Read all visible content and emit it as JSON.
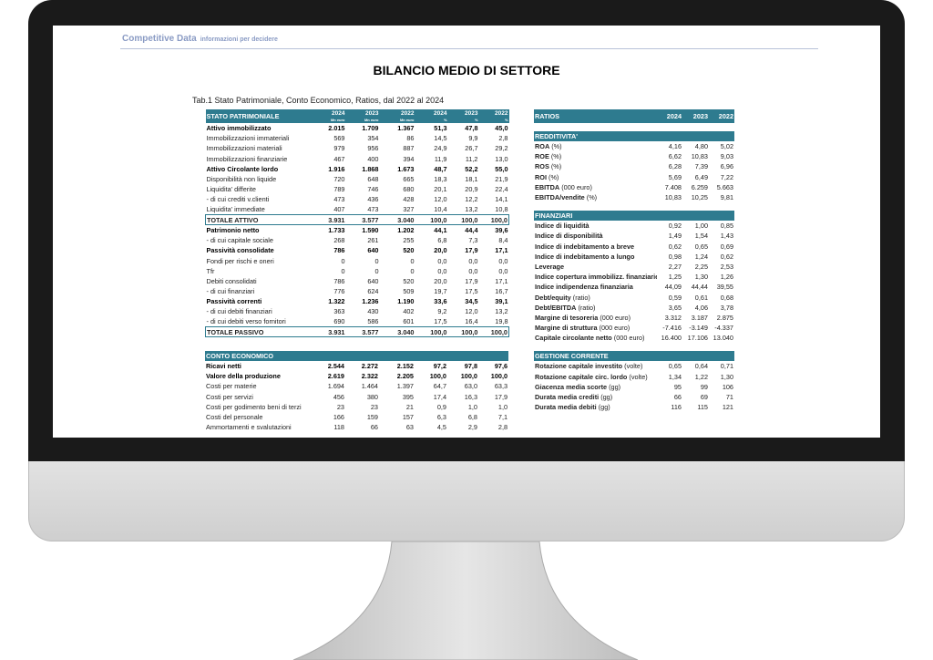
{
  "header": {
    "brand": "Competitive Data",
    "tagline": "informazioni per decidere"
  },
  "title": "BILANCIO MEDIO DI SETTORE",
  "subtitle": "Tab.1 Stato Patrimoniale, Conto Economico, Ratios, dal 2022 al 2024",
  "colors": {
    "header_teal": "#2e7b8f"
  },
  "stato_patrimoniale": {
    "title": "STATO PATRIMONIALE",
    "columns": [
      {
        "year": "2024",
        "unit": "Mn euro"
      },
      {
        "year": "2023",
        "unit": "Mn euro"
      },
      {
        "year": "2022",
        "unit": "Mn euro"
      },
      {
        "year": "2024",
        "unit": "%"
      },
      {
        "year": "2023",
        "unit": "%"
      },
      {
        "year": "2022",
        "unit": "%"
      }
    ],
    "rows": [
      {
        "label": "Attivo immobilizzato",
        "style": "b",
        "values": [
          "2.015",
          "1.709",
          "1.367",
          "51,3",
          "47,8",
          "45,0"
        ]
      },
      {
        "label": "Immobilizzazioni immateriali",
        "values": [
          "569",
          "354",
          "86",
          "14,5",
          "9,9",
          "2,8"
        ]
      },
      {
        "label": "Immobilizzazioni materiali",
        "values": [
          "979",
          "956",
          "887",
          "24,9",
          "26,7",
          "29,2"
        ]
      },
      {
        "label": "Immobilizzazioni finanziarie",
        "values": [
          "467",
          "400",
          "394",
          "11,9",
          "11,2",
          "13,0"
        ]
      },
      {
        "label": "Attivo Circolante  lordo",
        "style": "b",
        "values": [
          "1.916",
          "1.868",
          "1.673",
          "48,7",
          "52,2",
          "55,0"
        ]
      },
      {
        "label": "Disponibilità non liquide",
        "values": [
          "720",
          "648",
          "665",
          "18,3",
          "18,1",
          "21,9"
        ]
      },
      {
        "label": "Liquidita'  differite",
        "values": [
          "789",
          "746",
          "680",
          "20,1",
          "20,9",
          "22,4"
        ]
      },
      {
        "label": " - di cui crediti v.clienti",
        "values": [
          "473",
          "436",
          "428",
          "12,0",
          "12,2",
          "14,1"
        ]
      },
      {
        "label": "Liquidita'  immediate",
        "values": [
          "407",
          "473",
          "327",
          "10,4",
          "13,2",
          "10,8"
        ]
      },
      {
        "label": "TOTALE ATTIVO",
        "style": "tot",
        "values": [
          "3.931",
          "3.577",
          "3.040",
          "100,0",
          "100,0",
          "100,0"
        ]
      },
      {
        "label": "Patrimonio netto",
        "style": "b",
        "values": [
          "1.733",
          "1.590",
          "1.202",
          "44,1",
          "44,4",
          "39,6"
        ]
      },
      {
        "label": " - di cui capitale sociale",
        "values": [
          "268",
          "261",
          "255",
          "6,8",
          "7,3",
          "8,4"
        ]
      },
      {
        "label": "Passività consolidate",
        "style": "b",
        "values": [
          "786",
          "640",
          "520",
          "20,0",
          "17,9",
          "17,1"
        ]
      },
      {
        "label": "Fondi per rischi e oneri",
        "values": [
          "0",
          "0",
          "0",
          "0,0",
          "0,0",
          "0,0"
        ]
      },
      {
        "label": "Tfr",
        "values": [
          "0",
          "0",
          "0",
          "0,0",
          "0,0",
          "0,0"
        ]
      },
      {
        "label": "Debiti consolidati",
        "values": [
          "786",
          "640",
          "520",
          "20,0",
          "17,9",
          "17,1"
        ]
      },
      {
        "label": "- di cui finanziari",
        "values": [
          "776",
          "624",
          "509",
          "19,7",
          "17,5",
          "16,7"
        ]
      },
      {
        "label": "Passività correnti",
        "style": "b",
        "values": [
          "1.322",
          "1.236",
          "1.190",
          "33,6",
          "34,5",
          "39,1"
        ]
      },
      {
        "label": "- di cui debiti finanziari",
        "values": [
          "363",
          "430",
          "402",
          "9,2",
          "12,0",
          "13,2"
        ]
      },
      {
        "label": "- di cui debiti verso fornitori",
        "values": [
          "690",
          "586",
          "601",
          "17,5",
          "16,4",
          "19,8"
        ]
      },
      {
        "label": "TOTALE PASSIVO",
        "style": "tot",
        "values": [
          "3.931",
          "3.577",
          "3.040",
          "100,0",
          "100,0",
          "100,0"
        ]
      }
    ]
  },
  "conto_economico": {
    "title": "CONTO ECONOMICO",
    "rows": [
      {
        "label": "Ricavi netti",
        "style": "b",
        "values": [
          "2.544",
          "2.272",
          "2.152",
          "97,2",
          "97,8",
          "97,6"
        ]
      },
      {
        "label": "Valore della produzione",
        "style": "b",
        "values": [
          "2.619",
          "2.322",
          "2.205",
          "100,0",
          "100,0",
          "100,0"
        ]
      },
      {
        "label": "Costi per materie",
        "values": [
          "1.694",
          "1.464",
          "1.397",
          "64,7",
          "63,0",
          "63,3"
        ]
      },
      {
        "label": "Costi per servizi",
        "values": [
          "456",
          "380",
          "395",
          "17,4",
          "16,3",
          "17,9"
        ]
      },
      {
        "label": "Costi per godimento beni di terzi",
        "values": [
          "23",
          "23",
          "21",
          "0,9",
          "1,0",
          "1,0"
        ]
      },
      {
        "label": "Costi del personale",
        "values": [
          "166",
          "159",
          "157",
          "6,3",
          "6,8",
          "7,1"
        ]
      },
      {
        "label": "Ammortamenti e svalutazioni",
        "values": [
          "118",
          "66",
          "63",
          "4,5",
          "2,9",
          "2,8"
        ]
      }
    ]
  },
  "ratios": {
    "title": "RATIOS",
    "years": [
      "2024",
      "2023",
      "2022"
    ],
    "sections": [
      {
        "title": "REDDITIVITA'",
        "rows": [
          {
            "label": "ROA",
            "unit": "(%)",
            "values": [
              "4,16",
              "4,80",
              "5,02"
            ]
          },
          {
            "label": "ROE",
            "unit": "(%)",
            "values": [
              "6,62",
              "10,83",
              "9,03"
            ]
          },
          {
            "label": "ROS",
            "unit": "(%)",
            "values": [
              "6,28",
              "7,39",
              "6,96"
            ]
          },
          {
            "label": "ROI",
            "unit": "(%)",
            "values": [
              "5,69",
              "6,49",
              "7,22"
            ]
          },
          {
            "label": "EBITDA",
            "unit": "(000 euro)",
            "values": [
              "7.408",
              "6.259",
              "5.663"
            ]
          },
          {
            "label": "EBITDA/vendite",
            "unit": "(%)",
            "values": [
              "10,83",
              "10,25",
              "9,81"
            ]
          }
        ]
      },
      {
        "title": "FINANZIARI",
        "rows": [
          {
            "label": "Indice di liquidità",
            "unit": "",
            "values": [
              "0,92",
              "1,00",
              "0,85"
            ]
          },
          {
            "label": "Indice di disponibilità",
            "unit": "",
            "values": [
              "1,49",
              "1,54",
              "1,43"
            ]
          },
          {
            "label": "Indice di indebitamento a breve",
            "unit": "",
            "values": [
              "0,62",
              "0,65",
              "0,69"
            ]
          },
          {
            "label": "Indice di indebitamento a lungo",
            "unit": "",
            "values": [
              "0,98",
              "1,24",
              "0,62"
            ]
          },
          {
            "label": "Leverage",
            "unit": "",
            "values": [
              "2,27",
              "2,25",
              "2,53"
            ]
          },
          {
            "label": "Indice copertura immobilizz. finanziarie",
            "unit": "",
            "values": [
              "1,25",
              "1,30",
              "1,26"
            ]
          },
          {
            "label": "Indice indipendenza finanziaria",
            "unit": "",
            "values": [
              "44,09",
              "44,44",
              "39,55"
            ]
          },
          {
            "label": "Debt/equity",
            "unit": "(ratio)",
            "values": [
              "0,59",
              "0,61",
              "0,68"
            ]
          },
          {
            "label": "Debt/EBITDA",
            "unit": "(ratio)",
            "values": [
              "3,65",
              "4,06",
              "3,78"
            ]
          },
          {
            "label": "Margine di tesoreria",
            "unit": "(000 euro)",
            "values": [
              "3.312",
              "3.187",
              "2.875"
            ]
          },
          {
            "label": "Margine di struttura",
            "unit": "(000 euro)",
            "values": [
              "-7.416",
              "-3.149",
              "-4.337"
            ]
          },
          {
            "label": "Capitale circolante netto",
            "unit": "(000 euro)",
            "values": [
              "16.400",
              "17.106",
              "13.040"
            ]
          }
        ]
      },
      {
        "title": "GESTIONE CORRENTE",
        "rows": [
          {
            "label": "Rotazione capitale investito",
            "unit": "(volte)",
            "values": [
              "0,65",
              "0,64",
              "0,71"
            ]
          },
          {
            "label": "Rotazione capitale circ. lordo",
            "unit": "(volte)",
            "values": [
              "1,34",
              "1,22",
              "1,30"
            ]
          },
          {
            "label": "Giacenza media scorte",
            "unit": "(gg)",
            "values": [
              "95",
              "99",
              "106"
            ]
          },
          {
            "label": "Durata media crediti",
            "unit": "(gg)",
            "values": [
              "66",
              "69",
              "71"
            ]
          },
          {
            "label": "Durata media debiti",
            "unit": "(gg)",
            "values": [
              "116",
              "115",
              "121"
            ]
          }
        ]
      }
    ]
  }
}
